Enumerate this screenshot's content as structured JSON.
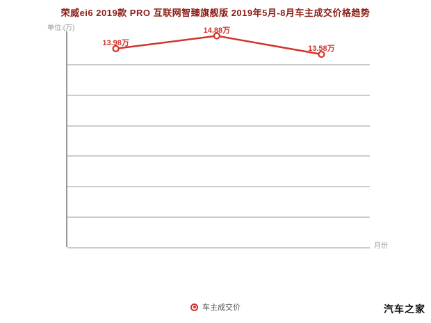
{
  "axis": {
    "y_unit_label": "单位:(万)",
    "x_axis_label": "月份"
  },
  "legend": {
    "label": "车主成交价"
  },
  "watermark": "汽车之家",
  "colors": {
    "line": "#d0342c",
    "point_label": "#d0342c",
    "title": "#8b1d15",
    "grid": "#cccccc",
    "axis": "#999999"
  },
  "chart_data": {
    "type": "line",
    "title": "荣威ei6 2019款 PRO 互联网智臻旗舰版 2019年5月-8月车主成交价格趋势",
    "ylabel": "单位:(万)",
    "xlabel": "月份",
    "ylim": [
      0,
      15.2
    ],
    "grid": true,
    "legend_position": "bottom",
    "x_positions_pct": [
      16,
      49.4,
      84
    ],
    "series": [
      {
        "name": "车主成交价",
        "values": [
          13.98,
          14.88,
          13.58
        ],
        "point_labels": [
          "13.98万",
          "14.88万",
          "13.58万"
        ]
      }
    ]
  }
}
